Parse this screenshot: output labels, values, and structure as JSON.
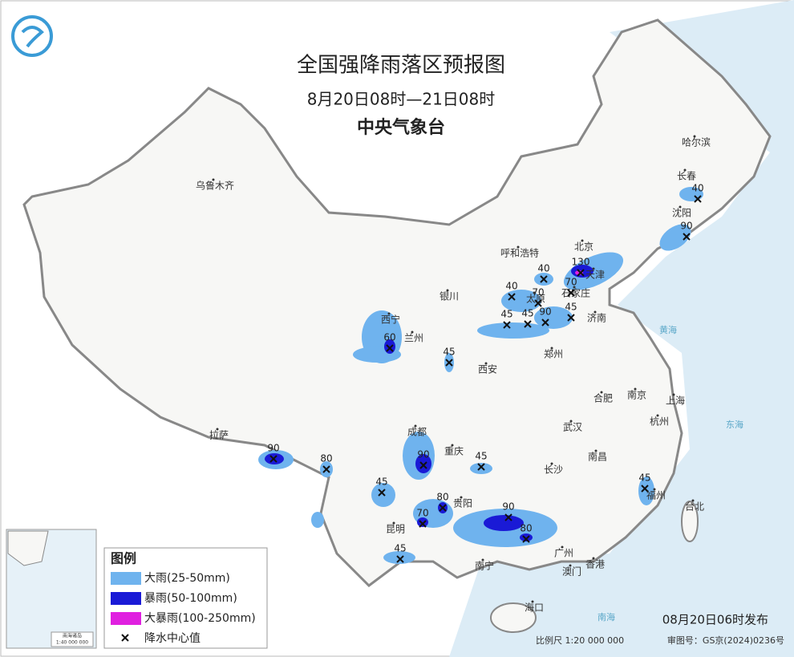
{
  "header": {
    "title": "全国强降雨落区预报图",
    "period": "8月20日08时—21日08时",
    "issuer": "中央气象台"
  },
  "cities": [
    "乌鲁木齐",
    "哈尔滨",
    "长春",
    "沈阳",
    "北京",
    "呼和浩特",
    "天津",
    "石家庄",
    "太原",
    "济南",
    "银川",
    "西宁",
    "兰州",
    "西安",
    "郑州",
    "合肥",
    "南京",
    "上海",
    "杭州",
    "武汉",
    "成都",
    "重庆",
    "长沙",
    "南昌",
    "拉萨",
    "贵阳",
    "昆明",
    "福州",
    "台北",
    "南宁",
    "广州",
    "澳门",
    "香港",
    "海口"
  ],
  "rain_centers": [
    40,
    90,
    130,
    40,
    70,
    40,
    70,
    45,
    45,
    90,
    45,
    60,
    45,
    90,
    80,
    90,
    45,
    45,
    80,
    70,
    90,
    80,
    45,
    45
  ],
  "seas": [
    "黄海",
    "东海",
    "南海"
  ],
  "legend": {
    "title": "图例",
    "items": [
      "大雨(25-50mm)",
      "暴雨(50-100mm)",
      "大暴雨(100-250mm)",
      "降水中心值"
    ]
  },
  "inset": {
    "title": "南海诸岛",
    "scale": "1:40 000 000"
  },
  "footer": {
    "issued": "08月20日06时发布",
    "scale": "比例尺  1:20 000 000",
    "map_number": "审图号：GS京(2024)0236号"
  }
}
